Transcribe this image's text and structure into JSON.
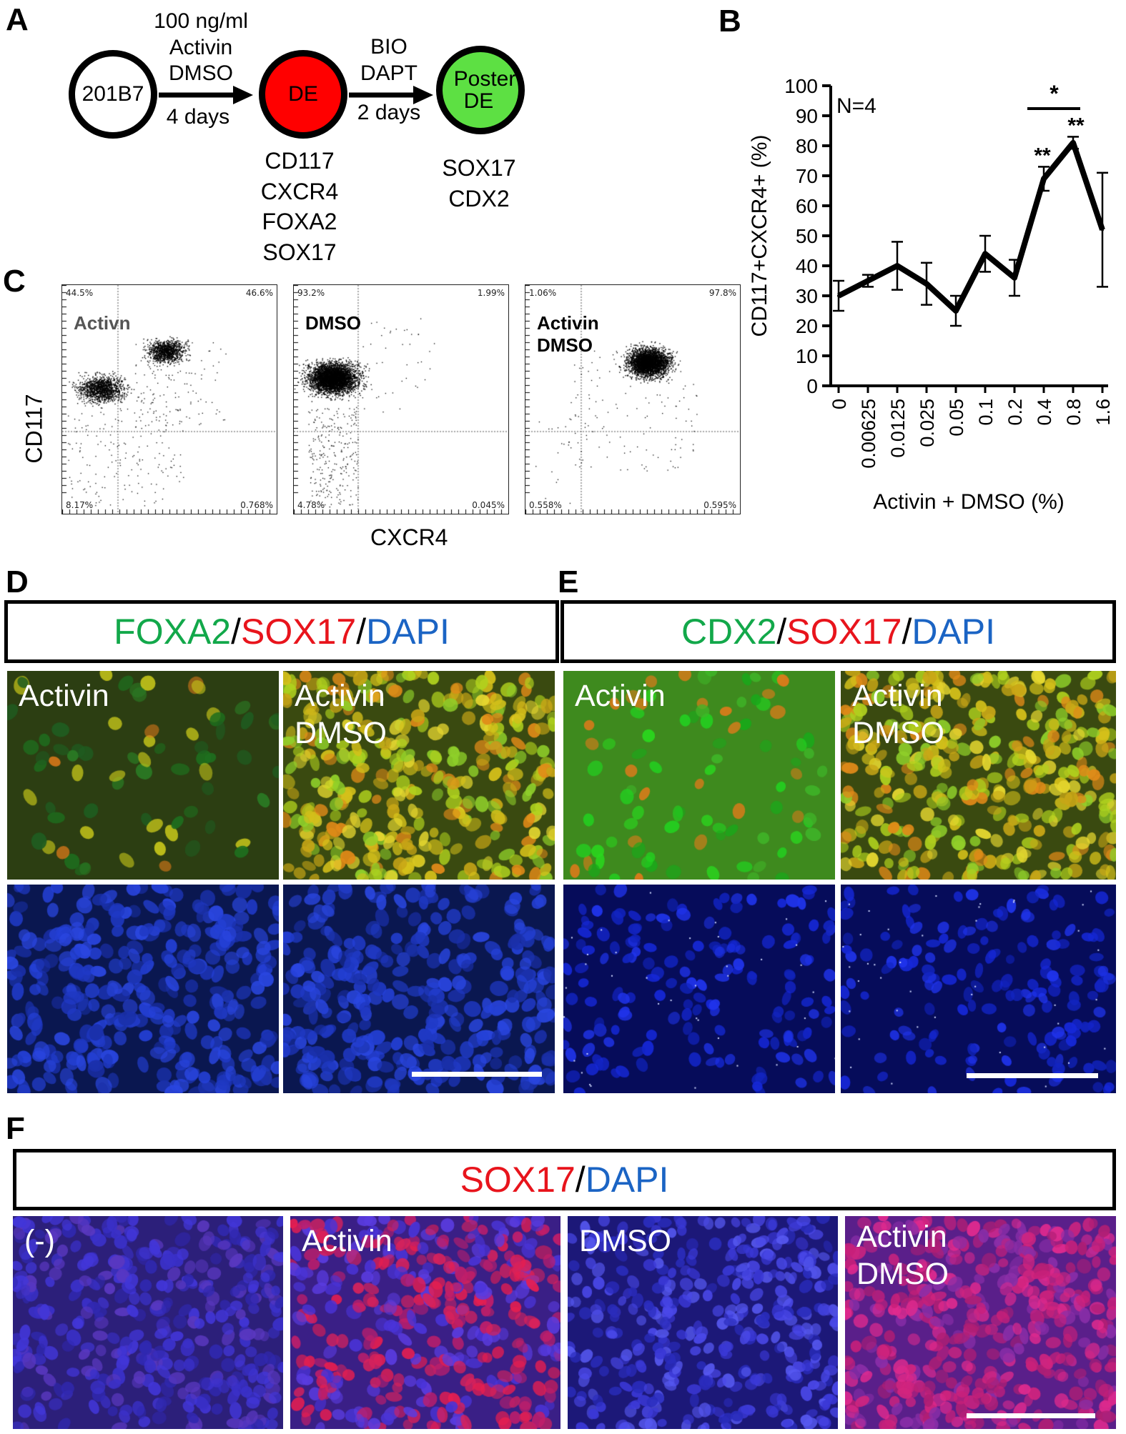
{
  "panel_labels": {
    "A": "A",
    "B": "B",
    "C": "C",
    "D": "D",
    "E": "E",
    "F": "F"
  },
  "schematic": {
    "start": "201B7",
    "step1": {
      "line1": "100 ng/ml",
      "line2": "Activin",
      "line3": "DMSO",
      "days": "4 days"
    },
    "de": "DE",
    "step2": {
      "line1": "BIO",
      "line2": "DAPT",
      "days": "2 days"
    },
    "poster": {
      "line1": "Poster",
      "line2": "DE"
    },
    "de_markers": [
      "CD117",
      "CXCR4",
      "FOXA2",
      "SOX17"
    ],
    "poster_markers": [
      "SOX17",
      "CDX2"
    ]
  },
  "colors": {
    "de": "#ff0000",
    "poster": "#5de043",
    "green_text": "#12a84a",
    "red_text": "#e8141c",
    "blue_text": "#1b64c4"
  },
  "chart_data": {
    "type": "line",
    "n_label": "N=4",
    "ylabel": "CD117+CXCR4+ (%)",
    "xlabel": "Activin + DMSO (%)",
    "categories": [
      "0",
      "0.00625",
      "0.0125",
      "0.025",
      "0.05",
      "0.1",
      "0.2",
      "0.4",
      "0.8",
      "1.6"
    ],
    "values": [
      30,
      35,
      40,
      34,
      25,
      44,
      36,
      69,
      81,
      52
    ],
    "error": [
      5,
      2,
      8,
      7,
      5,
      6,
      6,
      4,
      2,
      19
    ],
    "significance": [
      "",
      "",
      "",
      "",
      "",
      "",
      "",
      "**",
      "**",
      ""
    ],
    "bracket_label": "*",
    "ylim": [
      0,
      100
    ],
    "yticks": [
      "0",
      "10",
      "20",
      "30",
      "40",
      "50",
      "60",
      "70",
      "80",
      "90",
      "100"
    ],
    "grid": false
  },
  "flow": {
    "y_label": "CD117",
    "x_label": "CXCR4",
    "plots": [
      {
        "condition": "Activn",
        "tl": "44.5%",
        "tr": "46.6%",
        "bl": "8.17%",
        "br": "0.768%"
      },
      {
        "condition": "DMSO",
        "tl": "93.2%",
        "tr": "1.99%",
        "bl": "4.78%",
        "br": "0.045%"
      },
      {
        "condition": "Activin\nDMSO",
        "tl": "1.06%",
        "tr": "97.8%",
        "bl": "0.558%",
        "br": "0.595%"
      }
    ]
  },
  "panel_d": {
    "header": {
      "a": "FOXA2",
      "s1": "/ ",
      "b": "SOX17",
      "s2": "/ ",
      "c": "DAPI"
    },
    "images": [
      {
        "label": "Activin"
      },
      {
        "label": "Activin\nDMSO"
      }
    ]
  },
  "panel_e": {
    "header": {
      "a": "CDX2",
      "s1": "/ ",
      "b": "SOX17",
      "s2": "/ ",
      "c": "DAPI"
    },
    "images": [
      {
        "label": "Activin"
      },
      {
        "label": "Activin\nDMSO"
      }
    ]
  },
  "panel_f": {
    "header": {
      "b": "SOX17",
      "s2": "/ ",
      "c": "DAPI"
    },
    "images": [
      {
        "label": "(-)"
      },
      {
        "label": "Activin"
      },
      {
        "label": "DMSO"
      },
      {
        "label": "Activin\nDMSO"
      }
    ]
  }
}
